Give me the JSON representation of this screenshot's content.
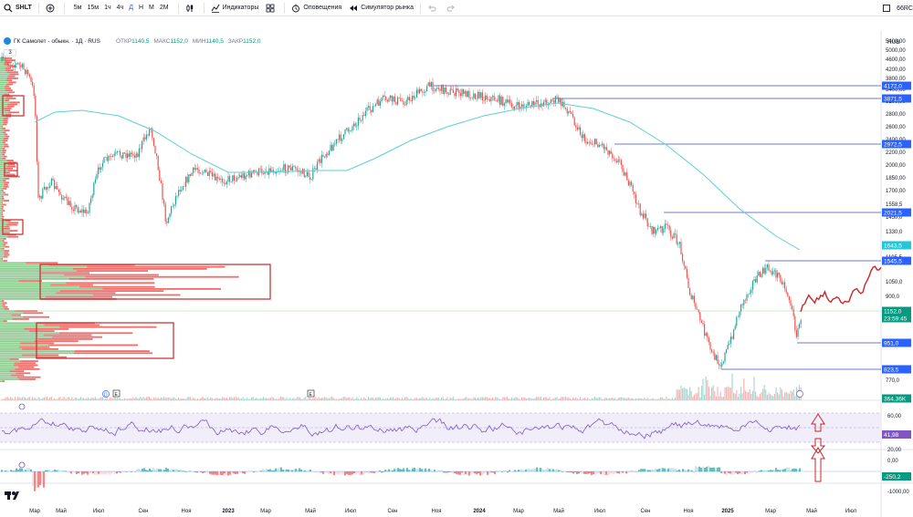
{
  "toolbar": {
    "symbol": "SHLT",
    "timeframes": [
      "5м",
      "15м",
      "1ч",
      "4ч",
      "Д",
      "Н",
      "М",
      "2М"
    ],
    "active_timeframe": "Д",
    "indicators_label": "Индикаторы",
    "alerts_label": "Оповещения",
    "replay_label": "Симулятор рынка",
    "right_text": "66RC"
  },
  "legend": {
    "title": "ГК Самолет - обыкн. · 1Д · RUS",
    "open_label": "ОТКР",
    "open": "1140,5",
    "high_label": "МАКС",
    "high": "1152,0",
    "low_label": "МИН",
    "low": "1140,5",
    "close_label": "ЗАКР",
    "close": "1152,0",
    "collapse": "3"
  },
  "currency": "RUB",
  "price_axis": {
    "ticks": [
      "5400,00",
      "5000,00",
      "4600,00",
      "4200,00",
      "3800,00",
      "3400,00",
      "3100,00",
      "2800,00",
      "2600,00",
      "2400,00",
      "2200,00",
      "2000,00",
      "1850,00",
      "1700,00",
      "1558,5",
      "1450,0",
      "1330,0",
      "1230,0",
      "1195,5",
      "1050,0",
      "900,0",
      "770,0"
    ],
    "levels": [
      {
        "value": "4172,0",
        "color": "#2962ff"
      },
      {
        "value": "3871,5",
        "color": "#2962ff"
      },
      {
        "value": "2972,5",
        "color": "#2962ff"
      },
      {
        "value": "2021,5",
        "color": "#2962ff"
      },
      {
        "value": "1643,5",
        "color": "#26c6da"
      },
      {
        "value": "1545,5",
        "color": "#2962ff"
      },
      {
        "value": "1152,0",
        "color": "#089981"
      },
      {
        "value": "23:59:45",
        "color": "#089981"
      },
      {
        "value": "951,0",
        "color": "#2962ff"
      },
      {
        "value": "823,5",
        "color": "#2962ff"
      },
      {
        "value": "364,36K",
        "color": "#089981"
      }
    ]
  },
  "rsi": {
    "ticks": [
      "80,00",
      "60,00",
      "40,00",
      "20,00"
    ],
    "value": "41,98",
    "value_color": "#7e57c2"
  },
  "macd": {
    "ticks": [
      "0,00",
      "-1000,00"
    ],
    "value": "-250,2",
    "value_color": "#089981"
  },
  "time_axis": {
    "ticks": [
      "Мар",
      "Май",
      "Июл",
      "Сен",
      "Ноя",
      "2023",
      "Мар",
      "Май",
      "Июл",
      "Сен",
      "Ноя",
      "2024",
      "Мар",
      "Май",
      "Июл",
      "Сен",
      "Ноя",
      "2025",
      "Мар",
      "Май",
      "Июл"
    ]
  },
  "markers": {
    "e1": "E",
    "e2": "E",
    "d": "D"
  },
  "logo": "TV"
}
